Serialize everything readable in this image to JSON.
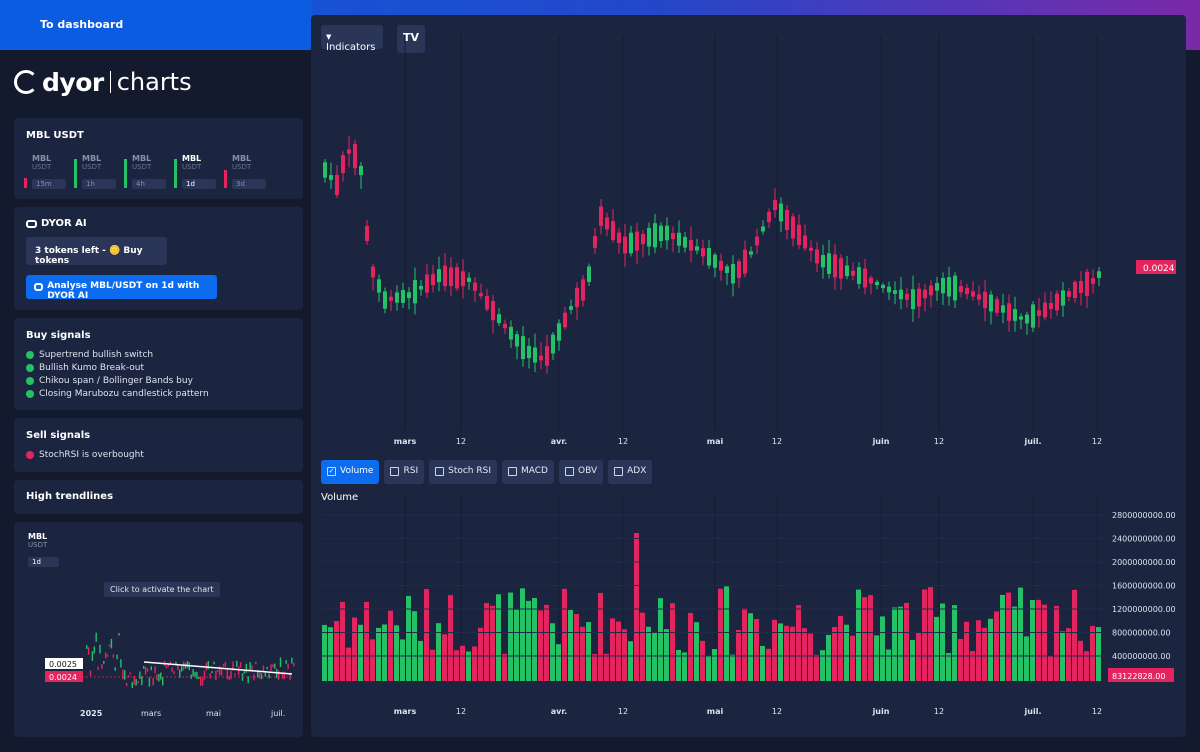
{
  "header": {
    "dashboard_label": "To dashboard"
  },
  "logo": {
    "brand": "dyor",
    "product": "charts"
  },
  "pair_card": {
    "title": "MBL USDT",
    "timeframes": [
      {
        "base": "MBL",
        "quote": "USDT",
        "tf": "15m",
        "bar_color": "#e4245f",
        "bar_level": 0.2,
        "active": false
      },
      {
        "base": "MBL",
        "quote": "USDT",
        "tf": "1h",
        "bar_color": "#25c167",
        "bar_level": 0.9,
        "active": false
      },
      {
        "base": "MBL",
        "quote": "USDT",
        "tf": "4h",
        "bar_color": "#25c167",
        "bar_level": 0.9,
        "active": false
      },
      {
        "base": "MBL",
        "quote": "USDT",
        "tf": "1d",
        "bar_color": "#25c167",
        "bar_level": 0.9,
        "active": true
      },
      {
        "base": "MBL",
        "quote": "USDT",
        "tf": "3d",
        "bar_color": "#e4245f",
        "bar_level": 0.5,
        "active": false
      }
    ]
  },
  "ai_card": {
    "title": "DYOR AI",
    "tokens_label": "3 tokens left - 🪙 Buy tokens",
    "analyse_label": "Analyse MBL/USDT on 1d with DYOR AI"
  },
  "buy_signals": {
    "title": "Buy signals",
    "items": [
      "Supertrend bullish switch",
      "Bullish Kumo Break-out",
      "Chikou span / Bollinger Bands buy",
      "Closing Marubozu candlestick pattern"
    ]
  },
  "sell_signals": {
    "title": "Sell signals",
    "items": [
      "StochRSI is overbought"
    ]
  },
  "trendlines": {
    "title": "High trendlines"
  },
  "mini_chart": {
    "base": "MBL",
    "quote": "USDT",
    "tf": "1d",
    "tooltip": "Click to activate the chart",
    "trend_price": "0.0025",
    "current_price": "0.0024",
    "x_labels": [
      "2025",
      "mars",
      "mai",
      "juil."
    ]
  },
  "main_chart": {
    "indicators_label": "Indicators",
    "tv_label": "TV",
    "price_badge": "0.0024",
    "x_labels": [
      "mars",
      "12",
      "avr.",
      "12",
      "mai",
      "12",
      "juin",
      "12",
      "juil.",
      "12"
    ],
    "tabs": [
      {
        "label": "Volume",
        "checked": true
      },
      {
        "label": "RSI",
        "checked": false
      },
      {
        "label": "Stoch RSI",
        "checked": false
      },
      {
        "label": "MACD",
        "checked": false
      },
      {
        "label": "OBV",
        "checked": false
      },
      {
        "label": "ADX",
        "checked": false
      }
    ],
    "volume_title": "Volume",
    "volume_y_labels": [
      "2800000000.00",
      "2400000000.00",
      "2000000000.00",
      "1600000000.00",
      "1200000000.00",
      "800000000.00",
      "400000000.00"
    ],
    "volume_badge": "83122828.00",
    "volume_x_labels": [
      "mars",
      "12",
      "avr.",
      "12",
      "mai",
      "12",
      "juin",
      "12",
      "juil.",
      "12"
    ]
  },
  "colors": {
    "up": "#25c167",
    "down": "#e4245f",
    "accent": "#0b6cf0",
    "panel": "#1c2540"
  }
}
